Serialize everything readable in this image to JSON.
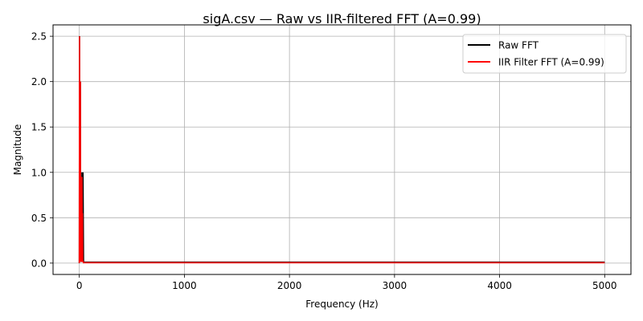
{
  "chart_data": {
    "type": "line",
    "title": "sigA.csv — Raw vs IIR-filtered FFT (A=0.99)",
    "xlabel": "Frequency (Hz)",
    "ylabel": "Magnitude",
    "xlim": [
      -250,
      5250
    ],
    "ylim": [
      -0.125,
      2.625
    ],
    "xticks": [
      0,
      1000,
      2000,
      3000,
      4000,
      5000
    ],
    "yticks": [
      0.0,
      0.5,
      1.0,
      1.5,
      2.0,
      2.5
    ],
    "xtick_labels": [
      "0",
      "1000",
      "2000",
      "3000",
      "4000",
      "5000"
    ],
    "ytick_labels": [
      "0.0",
      "0.5",
      "1.0",
      "1.5",
      "2.0",
      "2.5"
    ],
    "grid": true,
    "legend_position": "top-right",
    "series": [
      {
        "name": "Raw FFT",
        "color": "#000000",
        "x": [
          0,
          2,
          5,
          8,
          10,
          12,
          15,
          18,
          20,
          22,
          25,
          28,
          30,
          32,
          35,
          40,
          60,
          100,
          500,
          1000,
          2000,
          3000,
          4000,
          5000
        ],
        "y": [
          0.0,
          2.5,
          0.05,
          0.02,
          2.0,
          0.05,
          0.02,
          0.02,
          0.02,
          0.02,
          1.0,
          0.05,
          0.55,
          0.02,
          1.0,
          0.01,
          0.01,
          0.01,
          0.01,
          0.01,
          0.01,
          0.01,
          0.01,
          0.01
        ]
      },
      {
        "name": "IIR Filter FFT (A=0.99)",
        "color": "#ff0000",
        "x": [
          0,
          2,
          5,
          8,
          10,
          12,
          15,
          18,
          20,
          22,
          25,
          28,
          30,
          32,
          35,
          40,
          60,
          100,
          500,
          1000,
          2000,
          3000,
          4000,
          5000
        ],
        "y": [
          0.0,
          2.5,
          0.05,
          0.02,
          2.0,
          0.05,
          0.02,
          0.02,
          0.02,
          0.02,
          0.95,
          0.05,
          0.55,
          0.02,
          0.02,
          0.005,
          0.005,
          0.005,
          0.005,
          0.005,
          0.005,
          0.005,
          0.005,
          0.005
        ]
      }
    ]
  }
}
